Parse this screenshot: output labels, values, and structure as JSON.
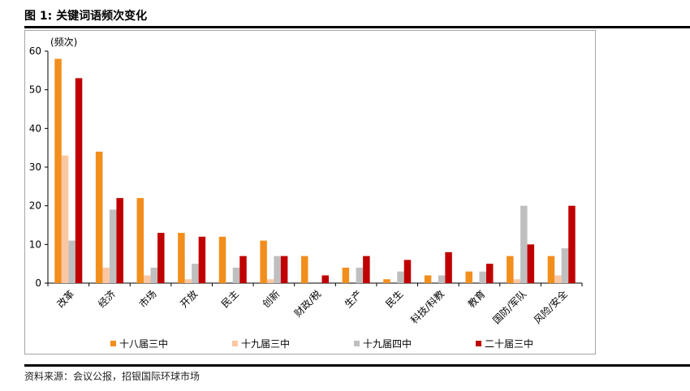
{
  "figure_title": "图 1: 关键词语频次变化",
  "source": "资料来源：会议公报，招银国际环球市场",
  "chart_data": {
    "type": "bar",
    "title": "",
    "ylabel": "(频次)",
    "xlabel": "",
    "ylim": [
      0,
      60
    ],
    "yticks": [
      0,
      10,
      20,
      30,
      40,
      50,
      60
    ],
    "categories": [
      "改革",
      "经济",
      "市场",
      "开放",
      "民主",
      "创新",
      "财政/税",
      "生产",
      "民生",
      "科技/科教",
      "教育",
      "国防/军队",
      "风险/安全"
    ],
    "series": [
      {
        "name": "十八届三中",
        "color": "#f28e1c",
        "values": [
          58,
          34,
          22,
          13,
          12,
          11,
          7,
          4,
          1,
          2,
          3,
          7,
          7
        ]
      },
      {
        "name": "十九届三中",
        "color": "#fbc7a2",
        "values": [
          33,
          4,
          2,
          1,
          0,
          1,
          0,
          0,
          0,
          0,
          0,
          1,
          2
        ]
      },
      {
        "name": "十九届四中",
        "color": "#bfbfbf",
        "values": [
          11,
          19,
          4,
          5,
          4,
          7,
          0,
          4,
          3,
          2,
          3,
          20,
          9
        ]
      },
      {
        "name": "二十届三中",
        "color": "#c00000",
        "values": [
          53,
          22,
          13,
          12,
          7,
          7,
          2,
          7,
          6,
          8,
          5,
          10,
          20
        ]
      }
    ],
    "grid": false,
    "legend_position": "bottom"
  }
}
